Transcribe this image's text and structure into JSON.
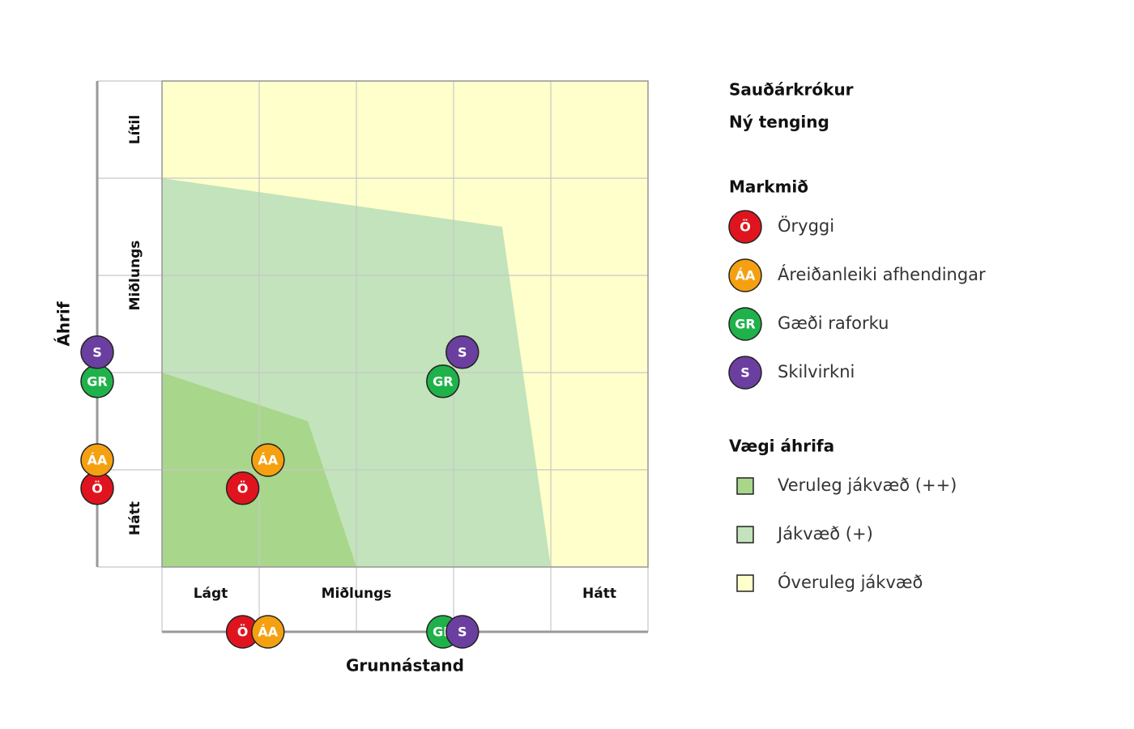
{
  "chart_data": {
    "type": "scatter",
    "title": "Sauðárkrókur",
    "subtitle": "Ný tenging",
    "x_label": "Grunnástand",
    "y_label": "Áhrif",
    "xlim": [
      0,
      5
    ],
    "ylim": [
      0,
      5
    ],
    "xticks": [
      0,
      1,
      2,
      3,
      4,
      5
    ],
    "yticks": [
      0,
      1,
      2,
      3,
      4,
      5
    ],
    "grid": true,
    "xbands": [
      {
        "label": "Lágt",
        "range": [
          0,
          1
        ]
      },
      {
        "label": "Miðlungs",
        "range": [
          1,
          3
        ]
      },
      {
        "label": "Hátt",
        "range": [
          4,
          5
        ]
      }
    ],
    "ybands": [
      {
        "label": "Hátt",
        "range": [
          0,
          1
        ]
      },
      {
        "label": "Miðlungs",
        "range": [
          2,
          4
        ]
      },
      {
        "label": "Lítil",
        "range": [
          4,
          5
        ]
      }
    ],
    "legend_title": "Markmið",
    "series": [
      {
        "name": "Öryggi",
        "label": "Ö",
        "color": "#e0141e",
        "x": [
          0.83
        ],
        "values": [
          0.81
        ]
      },
      {
        "name": "Áreiðanleiki afhendingar",
        "label": "ÁA",
        "color": "#f5a011",
        "x": [
          1.09
        ],
        "values": [
          1.1
        ]
      },
      {
        "name": "Gæði raforku",
        "label": "GR",
        "color": "#1fb24a",
        "x": [
          2.89
        ],
        "values": [
          1.91
        ]
      },
      {
        "name": "Skilvirkni",
        "label": "S",
        "color": "#6b3fa0",
        "x": [
          3.09
        ],
        "values": [
          2.21
        ]
      }
    ],
    "zones_title": "Vægi áhrifa",
    "zones": [
      {
        "name": "Veruleg jákvæð (++)",
        "color": "#a8d68a",
        "points": [
          [
            0,
            2
          ],
          [
            1.5,
            1.5
          ],
          [
            2,
            0
          ],
          [
            0,
            0
          ]
        ]
      },
      {
        "name": "Jákvæð (+)",
        "color": "#c2e3bb",
        "points": [
          [
            0,
            4
          ],
          [
            3.5,
            3.5
          ],
          [
            4,
            0
          ],
          [
            0,
            0
          ]
        ]
      },
      {
        "name": "Óveruleg jákvæð",
        "color": "#ffffcc",
        "points": [
          [
            0,
            5
          ],
          [
            5,
            5
          ],
          [
            5,
            0
          ],
          [
            0,
            0
          ]
        ]
      }
    ]
  }
}
